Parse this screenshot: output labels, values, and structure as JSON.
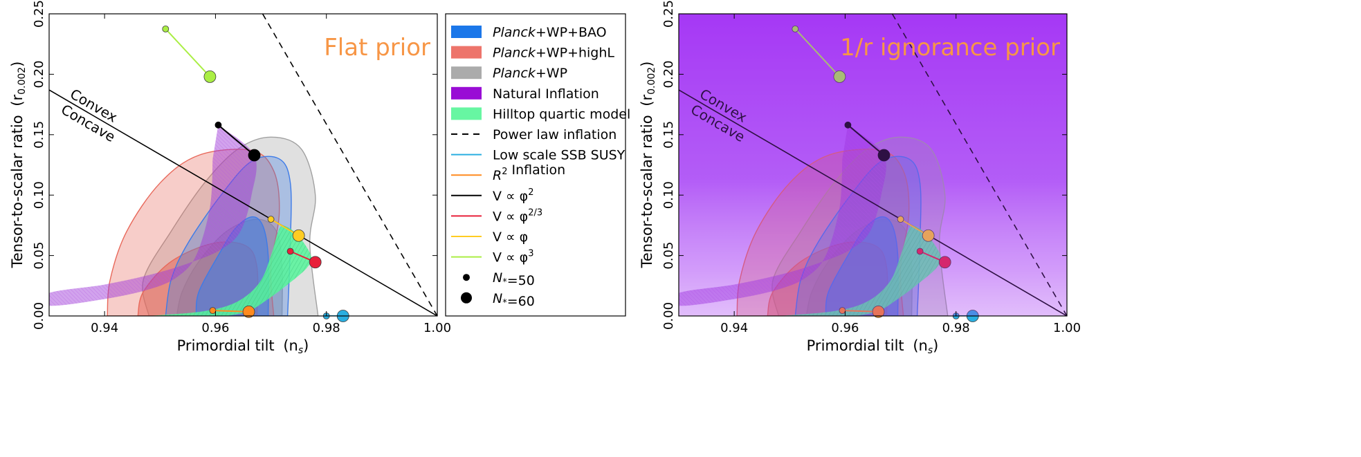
{
  "chart_data": [
    {
      "type": "scatter",
      "title": "Flat prior",
      "xlabel": "Primordial tilt",
      "xlabel_sym": "(n",
      "xlabel_sub": "s",
      "xlabel_close": ")",
      "ylabel": "Tensor-to-scalar ratio",
      "ylabel_sym": "(r",
      "ylabel_sub": "0.002",
      "ylabel_close": ")",
      "xlim": [
        0.93,
        1.0
      ],
      "ylim": [
        0.0,
        0.25
      ],
      "xticks": [
        "0.94",
        "0.96",
        "0.98",
        "1.00"
      ],
      "xtick_values": [
        0.94,
        0.96,
        0.98,
        1.0
      ],
      "yticks": [
        "0.00",
        "0.05",
        "0.10",
        "0.15",
        "0.20",
        "0.25"
      ],
      "ytick_values": [
        0.0,
        0.05,
        0.1,
        0.15,
        0.2,
        0.25
      ],
      "background": "white",
      "annotations": [
        "Convex",
        "Concave"
      ],
      "contours": [
        {
          "name": "Planck+WP",
          "color": "#a0a0a0",
          "outer": [
            [
              0.948,
              0.0
            ],
            [
              0.947,
              0.03
            ],
            [
              0.952,
              0.07
            ],
            [
              0.958,
              0.11
            ],
            [
              0.964,
              0.138
            ],
            [
              0.97,
              0.148
            ],
            [
              0.9755,
              0.138
            ],
            [
              0.978,
              0.1
            ],
            [
              0.977,
              0.06
            ],
            [
              0.9785,
              0.0
            ]
          ],
          "inner": [
            [
              0.953,
              0.0
            ],
            [
              0.954,
              0.02
            ],
            [
              0.957,
              0.045
            ],
            [
              0.962,
              0.07
            ],
            [
              0.9675,
              0.08
            ],
            [
              0.971,
              0.07
            ],
            [
              0.972,
              0.04
            ],
            [
              0.972,
              0.0
            ]
          ]
        },
        {
          "name": "Planck+WP+highL",
          "color": "#e8685a",
          "outer": [
            [
              0.9405,
              0.0
            ],
            [
              0.941,
              0.03
            ],
            [
              0.944,
              0.07
            ],
            [
              0.95,
              0.11
            ],
            [
              0.957,
              0.133
            ],
            [
              0.9665,
              0.137
            ],
            [
              0.9705,
              0.12
            ],
            [
              0.9715,
              0.085
            ],
            [
              0.97,
              0.04
            ],
            [
              0.9705,
              0.0
            ]
          ],
          "inner": [
            [
              0.946,
              0.0
            ],
            [
              0.947,
              0.02
            ],
            [
              0.952,
              0.045
            ],
            [
              0.9595,
              0.06
            ],
            [
              0.9655,
              0.058
            ],
            [
              0.9675,
              0.04
            ],
            [
              0.9675,
              0.0
            ]
          ]
        },
        {
          "name": "Planck+WP+BAO",
          "color": "#3d7be8",
          "outer": [
            [
              0.951,
              0.0
            ],
            [
              0.952,
              0.03
            ],
            [
              0.955,
              0.06
            ],
            [
              0.961,
              0.1
            ],
            [
              0.9665,
              0.128
            ],
            [
              0.9715,
              0.13
            ],
            [
              0.9735,
              0.11
            ],
            [
              0.9735,
              0.06
            ],
            [
              0.973,
              0.0
            ]
          ],
          "inner": [
            [
              0.9565,
              0.0
            ],
            [
              0.957,
              0.02
            ],
            [
              0.9605,
              0.05
            ],
            [
              0.9635,
              0.072
            ],
            [
              0.9665,
              0.082
            ],
            [
              0.9685,
              0.075
            ],
            [
              0.9695,
              0.05
            ],
            [
              0.9695,
              0.0
            ]
          ]
        }
      ],
      "lines": [
        {
          "name": "Convex/Concave divider",
          "color": "#000000",
          "style": "solid",
          "x": [
            0.93,
            1.0
          ],
          "y": [
            0.187,
            0.0
          ]
        },
        {
          "name": "Power law inflation",
          "color": "#000000",
          "style": "dashed",
          "x": [
            0.9685,
            1.0
          ],
          "y": [
            0.25,
            0.0
          ]
        }
      ],
      "models": [
        {
          "name": "V ∝ φ^2",
          "color": "#000000",
          "n50": [
            0.9605,
            0.158
          ],
          "n60": [
            0.967,
            0.133
          ]
        },
        {
          "name": "V ∝ φ^(2/3)",
          "color": "#e8203a",
          "n50": [
            0.9735,
            0.0535
          ],
          "n60": [
            0.978,
            0.0445
          ]
        },
        {
          "name": "V ∝ φ",
          "color": "#ffcc22",
          "n50": [
            0.97,
            0.08
          ],
          "n60": [
            0.975,
            0.0665
          ]
        },
        {
          "name": "V ∝ φ^3",
          "color": "#aaee44",
          "n50": [
            0.951,
            0.2375
          ],
          "n60": [
            0.959,
            0.198
          ]
        },
        {
          "name": "R^2 Inflation",
          "color": "#ff8a1f",
          "n50": [
            0.9595,
            0.0045
          ],
          "n60": [
            0.966,
            0.0035
          ]
        },
        {
          "name": "Low scale SSB SUSY",
          "color": "#29aee0",
          "n50": [
            0.98,
            0.0
          ],
          "n60": [
            0.983,
            0.0
          ]
        }
      ],
      "natural_inflation": {
        "name": "Natural Inflation",
        "color": "#9c33d8",
        "region": [
          [
            0.9605,
            0.158
          ],
          [
            0.967,
            0.133
          ],
          [
            0.9665,
            0.1
          ],
          [
            0.9645,
            0.07
          ],
          [
            0.961,
            0.055
          ],
          [
            0.956,
            0.045
          ],
          [
            0.949,
            0.035
          ],
          [
            0.94,
            0.026
          ],
          [
            0.93,
            0.019
          ],
          [
            0.93,
            0.0085
          ],
          [
            0.94,
            0.014
          ],
          [
            0.948,
            0.022
          ],
          [
            0.953,
            0.032
          ],
          [
            0.9565,
            0.05
          ],
          [
            0.959,
            0.09
          ],
          [
            0.9595,
            0.13
          ]
        ]
      },
      "hilltop": {
        "name": "Hilltop quartic model",
        "color": "#55f59a",
        "region": [
          [
            0.948,
            0.0
          ],
          [
            0.958,
            0.004
          ],
          [
            0.964,
            0.012
          ],
          [
            0.968,
            0.028
          ],
          [
            0.97,
            0.05
          ],
          [
            0.9715,
            0.072
          ],
          [
            0.9728,
            0.074
          ],
          [
            0.975,
            0.066
          ],
          [
            0.9772,
            0.05
          ],
          [
            0.9765,
            0.04
          ],
          [
            0.973,
            0.026
          ],
          [
            0.9695,
            0.014
          ],
          [
            0.966,
            0.004
          ],
          [
            0.962,
            0.0
          ]
        ]
      }
    },
    {
      "type": "scatter",
      "title": "1/r ignorance prior",
      "xlabel": "Primordial tilt",
      "xlabel_sym": "(n",
      "xlabel_sub": "s",
      "xlabel_close": ")",
      "ylabel": "Tensor-to-scalar ratio",
      "ylabel_sym": "(r",
      "ylabel_sub": "0.002",
      "ylabel_close": ")",
      "xlim": [
        0.93,
        1.0
      ],
      "ylim": [
        0.0,
        0.25
      ],
      "xticks": [
        "0.94",
        "0.96",
        "0.98",
        "1.00"
      ],
      "xtick_values": [
        0.94,
        0.96,
        0.98,
        1.0
      ],
      "yticks": [
        "0.00",
        "0.05",
        "0.10",
        "0.15",
        "0.20",
        "0.25"
      ],
      "ytick_values": [
        0.0,
        0.05,
        0.1,
        0.15,
        0.2,
        0.25
      ],
      "background": "purple gradient (dense at high r, fading toward r = 0)",
      "background_color": "#a638f5",
      "annotations": [
        "Convex",
        "Concave"
      ]
    }
  ],
  "legend": {
    "placement": "between panels",
    "entries": [
      {
        "label": "Planck",
        "suffix": "+WP+BAO",
        "italic_prefix": true,
        "kind": "patch",
        "color": "#0f70e8"
      },
      {
        "label": "Planck",
        "suffix": "+WP+highL",
        "italic_prefix": true,
        "kind": "patch",
        "color": "#ec6d63"
      },
      {
        "label": "Planck",
        "suffix": "+WP",
        "italic_prefix": true,
        "kind": "patch",
        "color": "#a6a6a6"
      },
      {
        "label": "Natural Inflation",
        "kind": "patch",
        "color": "#9400d3"
      },
      {
        "label": "Hilltop quartic model",
        "kind": "patch",
        "color": "#5ff59d"
      },
      {
        "label": "Power law inflation",
        "kind": "dashed",
        "color": "#000000"
      },
      {
        "label": "Low scale SSB SUSY",
        "kind": "line",
        "color": "#29aee0"
      },
      {
        "label": "R",
        "sup": "2",
        "suffix": " Inflation",
        "italic_prefix": true,
        "kind": "line",
        "color": "#ff8a1f"
      },
      {
        "label": "V ∝ φ",
        "sup": "2",
        "kind": "line",
        "color": "#000000"
      },
      {
        "label": "V ∝ φ",
        "sup": "2/3",
        "kind": "line",
        "color": "#e8203a"
      },
      {
        "label": "V ∝ φ",
        "sup": "",
        "kind": "line",
        "color": "#ffcc22"
      },
      {
        "label": "V ∝ φ",
        "sup": "3",
        "kind": "line",
        "color": "#aaee44"
      },
      {
        "label": "N",
        "sub": "*",
        "suffix": "=50",
        "kind": "dot-small",
        "color": "#000000"
      },
      {
        "label": "N",
        "sub": "*",
        "suffix": "=60",
        "kind": "dot-large",
        "color": "#000000"
      }
    ]
  }
}
